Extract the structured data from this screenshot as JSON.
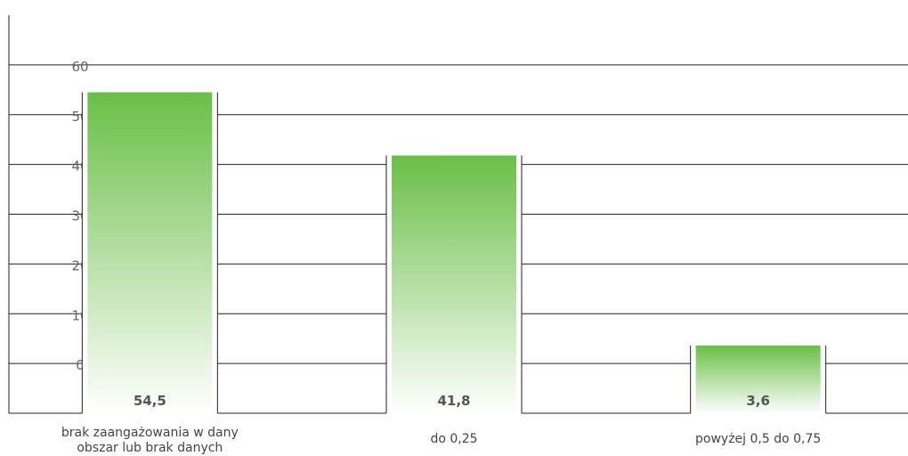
{
  "chart_data": {
    "type": "bar",
    "categories": [
      "brak zaangażowania w dany obszar lub brak danych",
      "do 0,25",
      "powyżej 0,5 do 0,75"
    ],
    "values": [
      54.5,
      41.8,
      3.6
    ],
    "value_labels": [
      "54,5",
      "41,8",
      "3,6"
    ],
    "y_ticks": [
      0,
      10,
      20,
      30,
      40,
      50,
      60
    ],
    "ylim": [
      -10,
      70
    ],
    "grid": true,
    "legend": "none",
    "colors": {
      "bar_top": "#6abf47",
      "bar_bottom": "#ffffff",
      "grid": "#222222",
      "tick_label": "#666666",
      "value_label": "#555555",
      "category_label": "#444444"
    }
  }
}
